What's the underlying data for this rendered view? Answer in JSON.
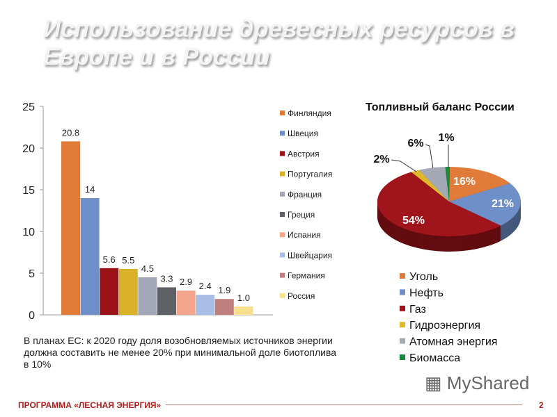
{
  "title": "Использование древесных ресурсов в Европе и в России",
  "note": "В планах ЕС: к 2020 году доля возобновляемых источников энергии должна составить не менее 20% при минимальной доле биотоплива в 10%",
  "footer": {
    "program": "ПРОГРАММА «ЛЕСНАЯ ЭНЕРГИЯ»",
    "page": "2"
  },
  "watermark": "MyShared",
  "chart_data": [
    {
      "type": "bar",
      "ylim": [
        0,
        25
      ],
      "yticks": [
        "0",
        "5",
        "10",
        "15",
        "20",
        "25"
      ],
      "legend_placement": "right",
      "grid": false,
      "categories": [
        "Финляндия",
        "Швеция",
        "Австрия",
        "Португалия",
        "Франция",
        "Греция",
        "Испания",
        "Швейцария",
        "Германия",
        "Россия"
      ],
      "values": [
        20.8,
        14,
        5.6,
        5.5,
        4.5,
        3.3,
        2.9,
        2.4,
        1.9,
        1.0
      ],
      "labels": [
        "20.8",
        "14",
        "5.6",
        "5.5",
        "4.5",
        "3.3",
        "2.9",
        "2.4",
        "1.9",
        "1.0"
      ],
      "colors": [
        "#e07b39",
        "#6f8fc9",
        "#9b1219",
        "#d9b22a",
        "#a3a7b8",
        "#5d6064",
        "#f5a48c",
        "#a8bde6",
        "#bf7f7e",
        "#f7df8e"
      ]
    },
    {
      "type": "pie",
      "title": "Топливный баланс России",
      "legend_placement": "bottom",
      "categories": [
        "Уголь",
        "Нефть",
        "Газ",
        "Гидроэнергия",
        "Атомная энергия",
        "Биомасса"
      ],
      "values": [
        16,
        21,
        54,
        2,
        6,
        1
      ],
      "labels": [
        "16%",
        "21%",
        "54%",
        "2%",
        "6%",
        "1%"
      ],
      "colors": [
        "#e07b39",
        "#6f8fc9",
        "#a0141c",
        "#e0b82a",
        "#a5a8b5",
        "#1a8a3a"
      ]
    }
  ]
}
